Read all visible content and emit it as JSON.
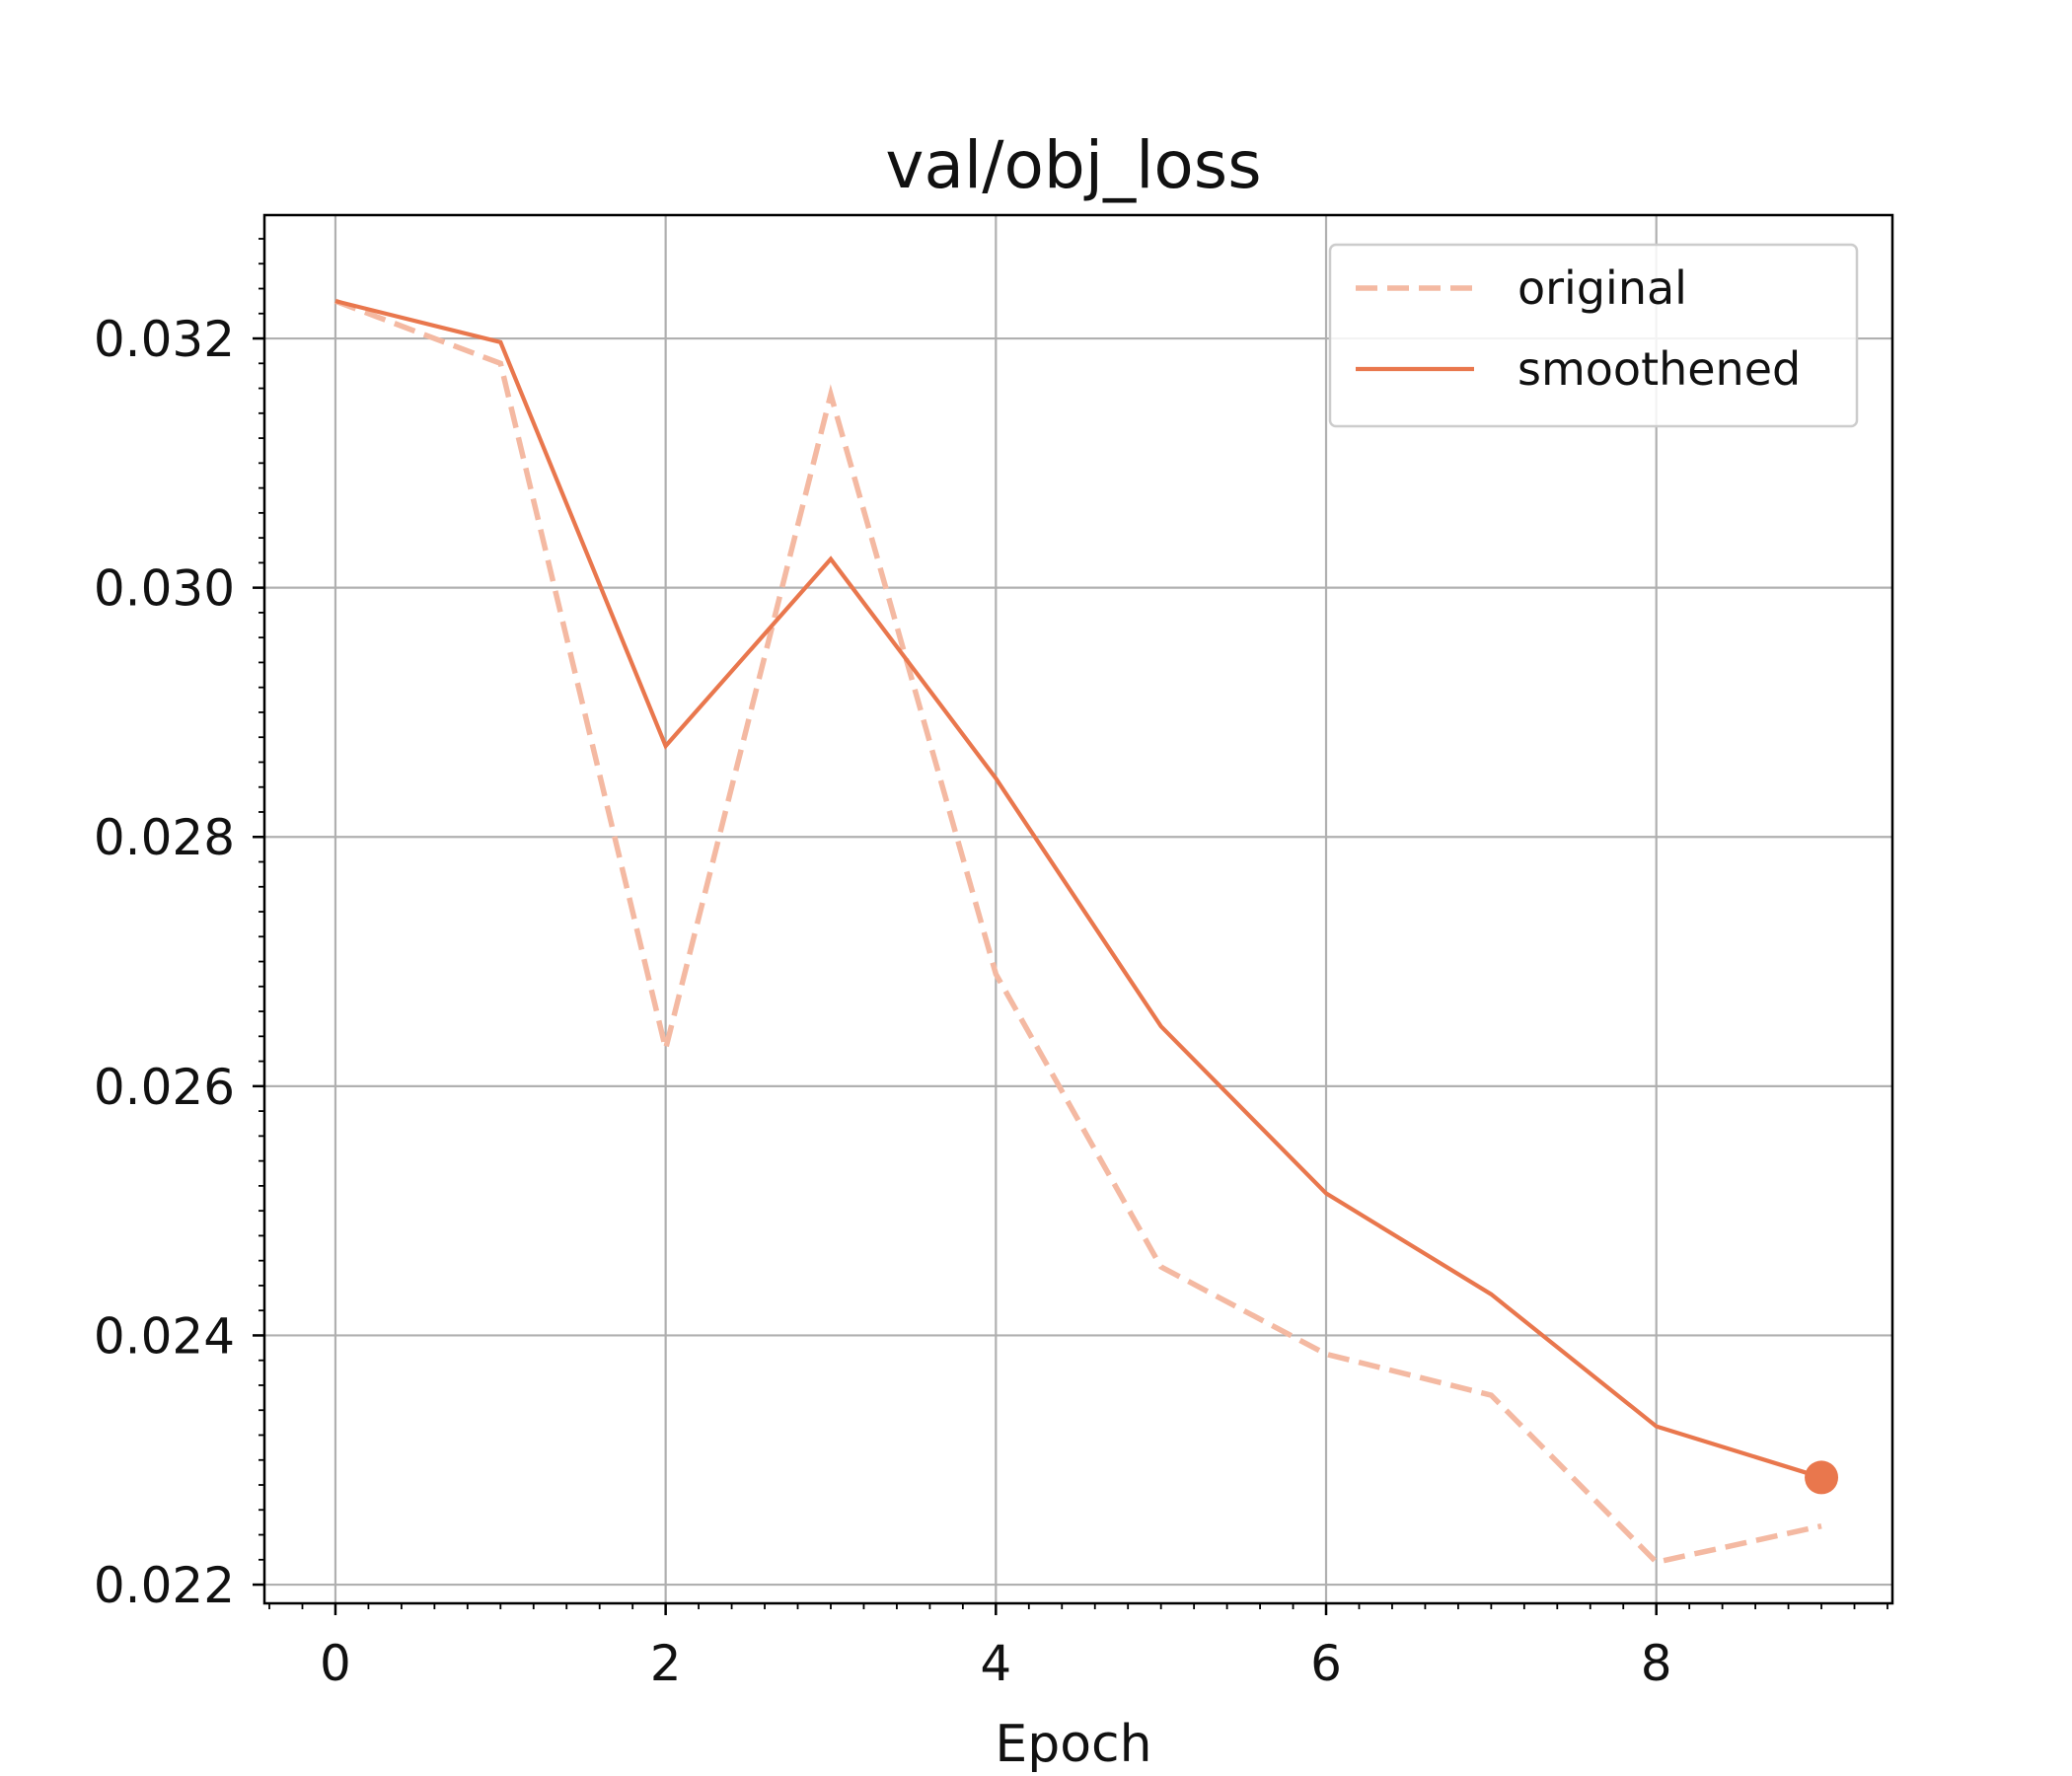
{
  "chart_data": {
    "type": "line",
    "title": "val/obj_loss",
    "xlabel": "Epoch",
    "ylabel": "",
    "x": [
      0,
      1,
      2,
      3,
      4,
      5,
      6,
      7,
      8,
      9
    ],
    "series": [
      {
        "name": "original",
        "style": "dashed",
        "color": "#f4b9a2",
        "values": [
          0.0323,
          0.0318,
          0.0263,
          0.03155,
          0.0269,
          0.02455,
          0.02385,
          0.02352,
          0.02218,
          0.02247
        ]
      },
      {
        "name": "smoothened",
        "style": "solid",
        "color": "#e9774d",
        "values": [
          0.0323,
          0.03197,
          0.02873,
          0.03023,
          0.02847,
          0.02648,
          0.02514,
          0.02433,
          0.02327,
          0.02286
        ]
      }
    ],
    "xlim": [
      -0.43,
      9.43
    ],
    "ylim": [
      0.02185,
      0.03299
    ],
    "xticks": [
      0,
      2,
      4,
      6,
      8
    ],
    "xtick_labels": [
      "0",
      "2",
      "4",
      "6",
      "8"
    ],
    "yticks": [
      0.022,
      0.024,
      0.026,
      0.028,
      0.03,
      0.032
    ],
    "ytick_labels": [
      "0.022",
      "0.024",
      "0.026",
      "0.028",
      "0.030",
      "0.032"
    ],
    "grid": true,
    "legend_position": "top-right",
    "end_marker": {
      "series": "smoothened",
      "x": 9
    }
  }
}
